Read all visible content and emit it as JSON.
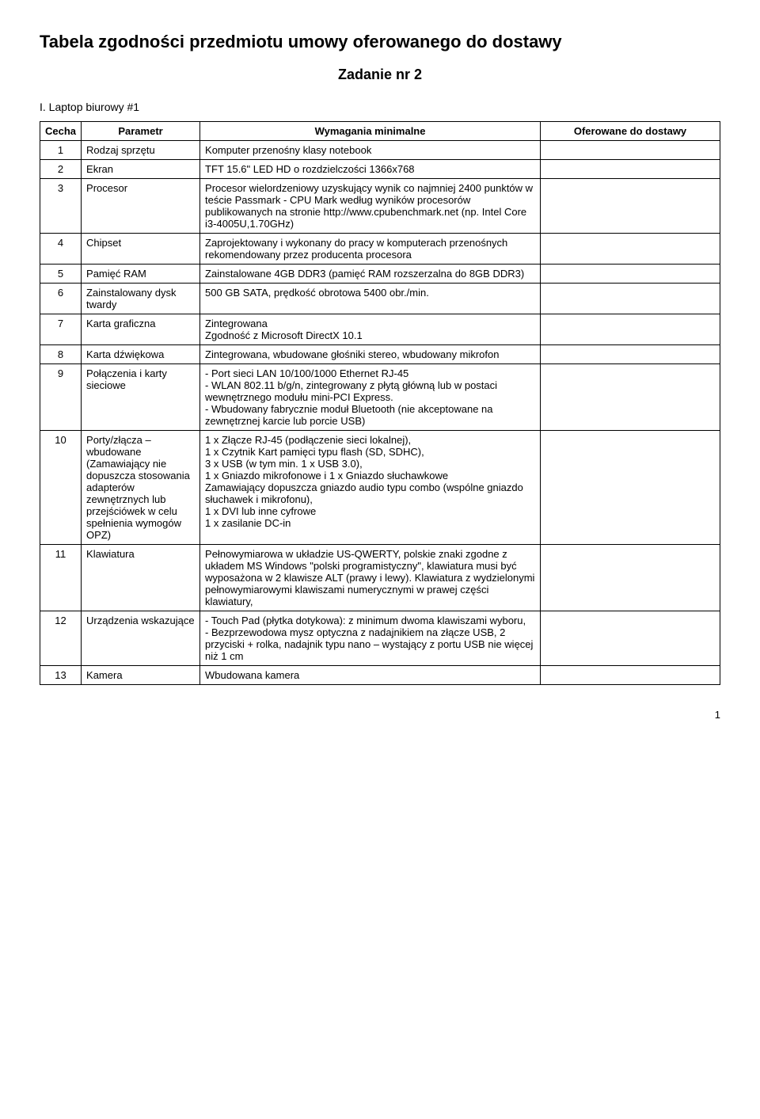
{
  "title": "Tabela zgodności przedmiotu umowy oferowanego do dostawy",
  "subtitle": "Zadanie nr 2",
  "section_label": "I.   Laptop biurowy #1",
  "headers": {
    "cecha": "Cecha",
    "parametr": "Parametr",
    "wymagania": "Wymagania minimalne",
    "oferowane": "Oferowane do dostawy"
  },
  "rows": [
    {
      "num": "1",
      "param": "Rodzaj sprzętu",
      "req": "Komputer przenośny klasy notebook",
      "offer": ""
    },
    {
      "num": "2",
      "param": "Ekran",
      "req": "TFT 15.6\" LED HD o rozdzielczości 1366x768",
      "offer": ""
    },
    {
      "num": "3",
      "param": "Procesor",
      "req": "Procesor wielordzeniowy uzyskujący wynik co najmniej 2400 punktów w teście Passmark - CPU Mark według wyników procesorów publikowanych na stronie http://www.cpubenchmark.net (np. Intel Core i3-4005U,1.70GHz)",
      "offer": ""
    },
    {
      "num": "4",
      "param": "Chipset",
      "req": "Zaprojektowany i wykonany do pracy w komputerach przenośnych rekomendowany przez producenta procesora",
      "offer": ""
    },
    {
      "num": "5",
      "param": "Pamięć RAM",
      "req": "Zainstalowane 4GB DDR3 (pamięć RAM rozszerzalna do 8GB DDR3)",
      "offer": ""
    },
    {
      "num": "6",
      "param": "Zainstalowany dysk twardy",
      "req": "500 GB SATA, prędkość obrotowa 5400 obr./min.",
      "offer": ""
    },
    {
      "num": "7",
      "param": "Karta graficzna",
      "req": "Zintegrowana\nZgodność z Microsoft DirectX 10.1",
      "offer": ""
    },
    {
      "num": "8",
      "param": "Karta dźwiękowa",
      "req": "Zintegrowana, wbudowane głośniki stereo, wbudowany mikrofon",
      "offer": ""
    },
    {
      "num": "9",
      "param": "Połączenia i karty sieciowe",
      "req": "- Port sieci LAN 10/100/1000 Ethernet RJ-45\n- WLAN 802.11 b/g/n, zintegrowany z płytą główną lub w postaci wewnętrznego modułu mini-PCI Express.\n- Wbudowany fabrycznie moduł Bluetooth (nie akceptowane na zewnętrznej karcie lub porcie USB)",
      "offer": ""
    },
    {
      "num": "10",
      "param": "Porty/złącza – wbudowane (Zamawiający nie dopuszcza stosowania adapterów zewnętrznych lub przejściówek w celu spełnienia wymogów OPZ)",
      "req": "1 x Złącze RJ-45 (podłączenie sieci lokalnej),\n1 x Czytnik Kart pamięci typu flash (SD, SDHC),\n3 x USB (w tym min. 1 x USB 3.0),\n1 x Gniazdo mikrofonowe i 1 x Gniazdo słuchawkowe\nZamawiający dopuszcza gniazdo audio typu combo (wspólne gniazdo słuchawek i mikrofonu),\n1 x DVI lub inne cyfrowe\n1 x zasilanie DC-in",
      "offer": ""
    },
    {
      "num": "11",
      "param": "Klawiatura",
      "req": "Pełnowymiarowa w układzie US-QWERTY, polskie znaki zgodne z układem MS Windows \"polski programistyczny\", klawiatura musi być wyposażona w 2 klawisze ALT (prawy i lewy). Klawiatura z wydzielonymi pełnowymiarowymi klawiszami numerycznymi w prawej części klawiatury,",
      "offer": ""
    },
    {
      "num": "12",
      "param": "Urządzenia wskazujące",
      "req": "- Touch Pad (płytka dotykowa): z minimum dwoma klawiszami wyboru,\n- Bezprzewodowa mysz optyczna z nadajnikiem na złącze USB,  2 przyciski + rolka, nadajnik typu nano – wystający z portu USB nie więcej niż 1 cm",
      "offer": ""
    },
    {
      "num": "13",
      "param": "Kamera",
      "req": "Wbudowana kamera",
      "offer": ""
    }
  ],
  "page_number": "1"
}
